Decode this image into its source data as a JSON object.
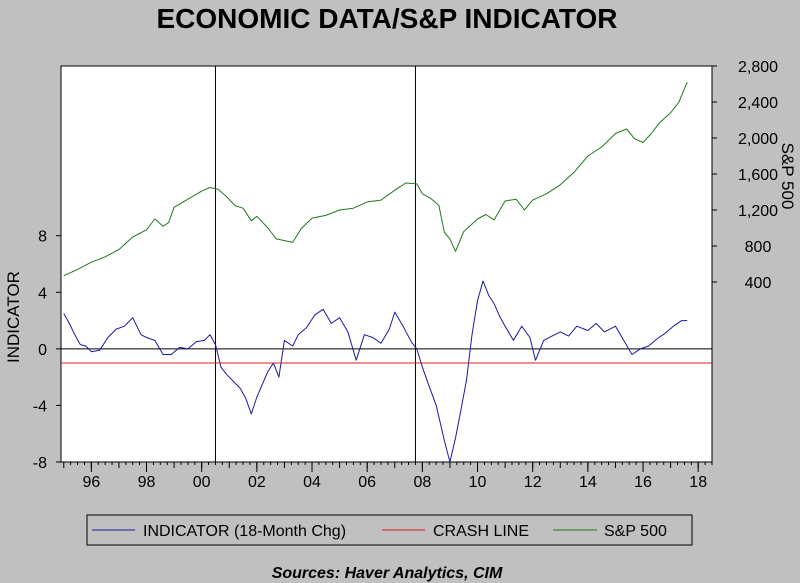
{
  "chart_data": {
    "type": "line",
    "title": "ECONOMIC DATA/S&P INDICATOR",
    "source": "Sources:  Haver Analytics, CIM",
    "x_axis": {
      "range": [
        1994.9,
        2018.5
      ],
      "tick_labels": [
        "96",
        "98",
        "00",
        "02",
        "04",
        "06",
        "08",
        "10",
        "12",
        "14",
        "16",
        "18"
      ],
      "tick_years": [
        1996,
        1998,
        2000,
        2002,
        2004,
        2006,
        2008,
        2010,
        2012,
        2014,
        2016,
        2018
      ]
    },
    "y_left": {
      "label": "INDICATOR",
      "range": [
        -8,
        20
      ],
      "ticks": [
        -8,
        -4,
        0,
        4,
        8
      ],
      "tick_labels": [
        "-8",
        "-4",
        "0",
        "4",
        "8"
      ]
    },
    "y_right": {
      "label": "S&P 500",
      "range": [
        -1600,
        2800
      ],
      "ticks": [
        400,
        800,
        1200,
        1600,
        2000,
        2400,
        2800
      ],
      "tick_labels": [
        "400",
        "800",
        "1,200",
        "1,600",
        "2,000",
        "2,400",
        "2,800"
      ]
    },
    "reference_lines": {
      "zero": 0,
      "crash_line": -1,
      "vertical_years": [
        2000.5,
        2007.75
      ]
    },
    "colors": {
      "indicator": "#1a1aa0",
      "crash": "#d42020",
      "sp500": "#1e7a1e",
      "background": "#c0c0c0",
      "plot": "#ffffff"
    },
    "series": [
      {
        "name": "INDICATOR (18-Month Chg)",
        "axis": "left",
        "x": [
          1995.0,
          1995.2,
          1995.4,
          1995.6,
          1995.8,
          1996.0,
          1996.3,
          1996.6,
          1996.9,
          1997.2,
          1997.5,
          1997.8,
          1998.0,
          1998.3,
          1998.6,
          1998.9,
          1999.2,
          1999.5,
          1999.8,
          2000.1,
          2000.3,
          2000.5,
          2000.7,
          2000.9,
          2001.2,
          2001.4,
          2001.6,
          2001.8,
          2002.0,
          2002.2,
          2002.4,
          2002.6,
          2002.8,
          2003.0,
          2003.3,
          2003.5,
          2003.8,
          2004.1,
          2004.4,
          2004.7,
          2005.0,
          2005.3,
          2005.6,
          2005.9,
          2006.2,
          2006.5,
          2006.8,
          2007.0,
          2007.3,
          2007.6,
          2007.8,
          2008.0,
          2008.2,
          2008.5,
          2008.8,
          2009.0,
          2009.2,
          2009.4,
          2009.6,
          2009.8,
          2010.0,
          2010.2,
          2010.4,
          2010.6,
          2010.8,
          2011.0,
          2011.3,
          2011.6,
          2011.9,
          2012.1,
          2012.4,
          2012.7,
          2013.0,
          2013.3,
          2013.6,
          2014.0,
          2014.3,
          2014.6,
          2015.0,
          2015.3,
          2015.6,
          2015.9,
          2016.2,
          2016.5,
          2016.8,
          2017.1,
          2017.4,
          2017.6
        ],
        "values": [
          2.5,
          1.8,
          1.0,
          0.3,
          0.2,
          -0.2,
          -0.1,
          0.8,
          1.4,
          1.6,
          2.2,
          1.0,
          0.8,
          0.6,
          -0.4,
          -0.4,
          0.1,
          0.0,
          0.5,
          0.6,
          1.0,
          0.3,
          -1.3,
          -1.8,
          -2.4,
          -2.8,
          -3.5,
          -4.6,
          -3.4,
          -2.5,
          -1.6,
          -1.0,
          -2.0,
          0.6,
          0.2,
          1.0,
          1.5,
          2.4,
          2.8,
          1.8,
          2.2,
          1.2,
          -0.8,
          1.0,
          0.8,
          0.4,
          1.4,
          2.6,
          1.6,
          0.5,
          0.0,
          -1.3,
          -2.4,
          -4.0,
          -6.5,
          -8.0,
          -6.3,
          -4.3,
          -2.2,
          1.0,
          3.4,
          4.8,
          3.8,
          3.2,
          2.3,
          1.6,
          0.6,
          1.6,
          0.8,
          -0.8,
          0.6,
          0.9,
          1.2,
          0.9,
          1.6,
          1.3,
          1.8,
          1.2,
          1.6,
          0.6,
          -0.4,
          0.0,
          0.2,
          0.7,
          1.1,
          1.6,
          2.0,
          2.0
        ]
      },
      {
        "name": "CRASH LINE",
        "axis": "left",
        "x": [
          1994.9,
          2018.5
        ],
        "values": [
          -1,
          -1
        ]
      },
      {
        "name": "S&P 500",
        "axis": "right",
        "x": [
          1995.0,
          1995.5,
          1996.0,
          1996.5,
          1997.0,
          1997.5,
          1998.0,
          1998.3,
          1998.6,
          1998.8,
          1999.0,
          1999.5,
          2000.0,
          2000.3,
          2000.6,
          2000.9,
          2001.2,
          2001.5,
          2001.8,
          2002.0,
          2002.4,
          2002.7,
          2003.0,
          2003.3,
          2003.6,
          2004.0,
          2004.5,
          2005.0,
          2005.5,
          2006.0,
          2006.5,
          2007.0,
          2007.4,
          2007.8,
          2008.0,
          2008.3,
          2008.6,
          2008.8,
          2009.0,
          2009.2,
          2009.5,
          2010.0,
          2010.3,
          2010.6,
          2011.0,
          2011.4,
          2011.7,
          2012.0,
          2012.5,
          2013.0,
          2013.5,
          2014.0,
          2014.5,
          2015.0,
          2015.4,
          2015.7,
          2016.0,
          2016.3,
          2016.6,
          2017.0,
          2017.3,
          2017.6
        ],
        "values": [
          470,
          540,
          620,
          680,
          760,
          900,
          980,
          1100,
          1020,
          1060,
          1230,
          1320,
          1410,
          1450,
          1430,
          1350,
          1250,
          1220,
          1080,
          1130,
          1000,
          880,
          860,
          840,
          990,
          1110,
          1140,
          1200,
          1220,
          1290,
          1310,
          1420,
          1500,
          1490,
          1380,
          1330,
          1250,
          950,
          880,
          740,
          960,
          1100,
          1150,
          1090,
          1300,
          1320,
          1200,
          1310,
          1380,
          1480,
          1620,
          1800,
          1900,
          2050,
          2100,
          1990,
          1950,
          2050,
          2170,
          2280,
          2400,
          2620
        ]
      }
    ]
  }
}
